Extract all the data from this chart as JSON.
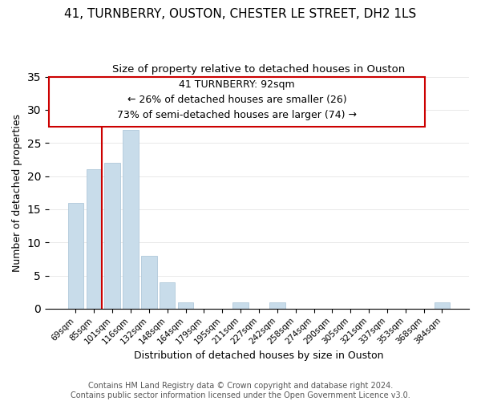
{
  "title": "41, TURNBERRY, OUSTON, CHESTER LE STREET, DH2 1LS",
  "subtitle": "Size of property relative to detached houses in Ouston",
  "xlabel": "Distribution of detached houses by size in Ouston",
  "ylabel": "Number of detached properties",
  "bar_labels": [
    "69sqm",
    "85sqm",
    "101sqm",
    "116sqm",
    "132sqm",
    "148sqm",
    "164sqm",
    "179sqm",
    "195sqm",
    "211sqm",
    "227sqm",
    "242sqm",
    "258sqm",
    "274sqm",
    "290sqm",
    "305sqm",
    "321sqm",
    "337sqm",
    "353sqm",
    "368sqm",
    "384sqm"
  ],
  "bar_values": [
    16,
    21,
    22,
    27,
    8,
    4,
    1,
    0,
    0,
    1,
    0,
    1,
    0,
    0,
    0,
    0,
    0,
    0,
    0,
    0,
    1
  ],
  "bar_color": "#c8dcea",
  "bar_edge_color": "#b0c8da",
  "vline_color": "#cc0000",
  "ylim": [
    0,
    35
  ],
  "annotation_line1": "41 TURNBERRY: 92sqm",
  "annotation_line2": "← 26% of detached houses are smaller (26)",
  "annotation_line3": "73% of semi-detached houses are larger (74) →",
  "footer_text": "Contains HM Land Registry data © Crown copyright and database right 2024.\nContains public sector information licensed under the Open Government Licence v3.0.",
  "title_fontsize": 11,
  "subtitle_fontsize": 9.5,
  "axis_label_fontsize": 9,
  "tick_fontsize": 7.5,
  "footer_fontsize": 7,
  "annotation_fontsize": 9
}
